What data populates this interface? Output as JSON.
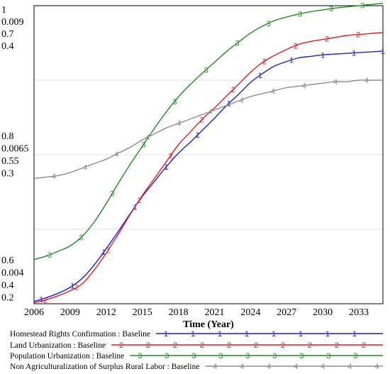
{
  "chart_data": {
    "type": "line",
    "title": "",
    "xlabel": "Time (Year)",
    "ylabel": "",
    "xlim": [
      2006,
      2035
    ],
    "x_ticks": [
      2006,
      2009,
      2012,
      2015,
      2018,
      2021,
      2024,
      2027,
      2030,
      2033
    ],
    "y_tick_labels": {
      "top": [
        "1",
        "0.009",
        "0.7",
        "0.4"
      ],
      "middle": [
        "0.8",
        "0.0065",
        "0.55",
        "0.3"
      ],
      "bottom": [
        "0.6",
        "0.004",
        "0.4",
        "0.2"
      ]
    },
    "grid": true,
    "legend_position": "bottom",
    "series": [
      {
        "name": "Homestead Rights Confirmation : Baseline",
        "marker": "1",
        "color": "#1f1fcc",
        "ylim": [
          0.6,
          1
        ],
        "x": [
          2006,
          2007,
          2008,
          2009,
          2010,
          2011,
          2012,
          2013,
          2014,
          2015,
          2016,
          2017,
          2018,
          2019,
          2020,
          2021,
          2022,
          2023,
          2024,
          2025,
          2026,
          2027,
          2028,
          2029,
          2030,
          2031,
          2032,
          2033,
          2034,
          2035
        ],
        "y": [
          0.603,
          0.608,
          0.614,
          0.622,
          0.634,
          0.652,
          0.674,
          0.697,
          0.721,
          0.744,
          0.764,
          0.784,
          0.802,
          0.817,
          0.833,
          0.849,
          0.866,
          0.881,
          0.897,
          0.909,
          0.919,
          0.925,
          0.93,
          0.932,
          0.934,
          0.935,
          0.936,
          0.937,
          0.938,
          0.939
        ]
      },
      {
        "name": "Land Urbanization : Baseline",
        "marker": "2",
        "color": "#d92020",
        "ylim": [
          0.4,
          0.7
        ],
        "x": [
          2006,
          2007,
          2008,
          2009,
          2010,
          2011,
          2012,
          2013,
          2014,
          2015,
          2016,
          2017,
          2018,
          2019,
          2020,
          2021,
          2022,
          2023,
          2024,
          2025,
          2026,
          2027,
          2028,
          2029,
          2030,
          2031,
          2032,
          2033,
          2034,
          2035
        ],
        "y": [
          0.401,
          0.404,
          0.408,
          0.413,
          0.42,
          0.434,
          0.451,
          0.47,
          0.49,
          0.509,
          0.526,
          0.543,
          0.56,
          0.573,
          0.586,
          0.597,
          0.609,
          0.621,
          0.633,
          0.643,
          0.65,
          0.656,
          0.661,
          0.664,
          0.666,
          0.668,
          0.67,
          0.671,
          0.672,
          0.673
        ]
      },
      {
        "name": "Population Urbanization : Baseline",
        "marker": "3",
        "color": "#1a8c1a",
        "ylim": [
          0.004,
          0.009
        ],
        "x": [
          2006,
          2007,
          2008,
          2009,
          2010,
          2011,
          2012,
          2013,
          2014,
          2015,
          2016,
          2017,
          2018,
          2019,
          2020,
          2021,
          2022,
          2023,
          2024,
          2025,
          2026,
          2027,
          2028,
          2029,
          2030,
          2031,
          2032,
          2033,
          2034,
          2035
        ],
        "y": [
          0.00474,
          0.0048,
          0.00488,
          0.00497,
          0.00513,
          0.00537,
          0.00568,
          0.00602,
          0.00634,
          0.00664,
          0.00694,
          0.00722,
          0.00747,
          0.00768,
          0.00787,
          0.00805,
          0.00823,
          0.00839,
          0.00854,
          0.00866,
          0.00875,
          0.00881,
          0.00886,
          0.0089,
          0.00893,
          0.00896,
          0.00898,
          0.009,
          0.00902,
          0.00904
        ]
      },
      {
        "name": "Non Agriculturalization of Surplus Rural Labor : Baseline",
        "marker": "4",
        "color": "#8c8c8c",
        "ylim": [
          0.2,
          0.4
        ],
        "x": [
          2006,
          2007,
          2008,
          2009,
          2010,
          2011,
          2012,
          2013,
          2014,
          2015,
          2016,
          2017,
          2018,
          2019,
          2020,
          2021,
          2022,
          2023,
          2024,
          2025,
          2026,
          2027,
          2028,
          2029,
          2030,
          2031,
          2032,
          2033,
          2034,
          2035
        ],
        "y": [
          0.284,
          0.285,
          0.286,
          0.288,
          0.291,
          0.294,
          0.297,
          0.301,
          0.305,
          0.31,
          0.314,
          0.318,
          0.321,
          0.324,
          0.327,
          0.33,
          0.333,
          0.336,
          0.339,
          0.341,
          0.343,
          0.345,
          0.346,
          0.347,
          0.348,
          0.349,
          0.349,
          0.35,
          0.35,
          0.35
        ]
      }
    ]
  }
}
